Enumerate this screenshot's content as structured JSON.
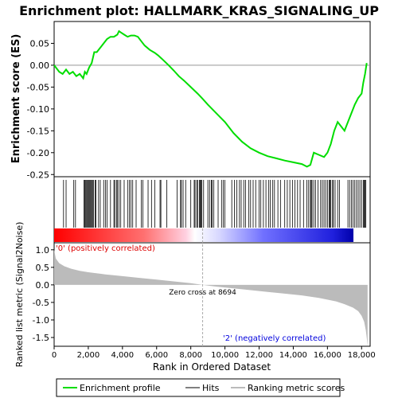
{
  "chart_data": {
    "type": "line",
    "title": "Enrichment plot: HALLMARK_KRAS_SIGNALING_UP",
    "xlabel": "Rank in Ordered Dataset",
    "x_ticks": [
      0,
      2000,
      4000,
      6000,
      8000,
      10000,
      12000,
      14000,
      16000,
      18000
    ],
    "x_tick_labels": [
      "0",
      "2,000",
      "4,000",
      "6,000",
      "8,000",
      "10,000",
      "12,000",
      "14,000",
      "16,000",
      "18,000"
    ],
    "xlim": [
      0,
      18500
    ],
    "colors": {
      "es_line": "#00dd00",
      "metric_fill": "#bbbbbb",
      "positive_text": "#dd0000",
      "negative_text": "#0000dd",
      "zero_line": "#aaaaaa"
    },
    "panels": {
      "enrichment": {
        "ylabel": "Enrichment score (ES)",
        "ylim": [
          -0.255,
          0.1
        ],
        "y_ticks": [
          -0.25,
          -0.2,
          -0.15,
          -0.1,
          -0.05,
          0.0,
          0.05
        ],
        "y_tick_labels": [
          "-0.25",
          "-0.20",
          "-0.15",
          "-0.10",
          "-0.05",
          "0.00",
          "0.05"
        ],
        "series": [
          {
            "name": "Enrichment profile",
            "x": [
              0,
              300,
              500,
              700,
              900,
              1100,
              1300,
              1500,
              1700,
              1800,
              1900,
              2050,
              2200,
              2350,
              2500,
              2700,
              2900,
              3100,
              3300,
              3500,
              3700,
              3800,
              3900,
              4100,
              4300,
              4500,
              4700,
              4900,
              5100,
              5300,
              5600,
              5900,
              6100,
              6300,
              6700,
              7000,
              7300,
              7600,
              8000,
              8400,
              8694,
              9000,
              9500,
              10000,
              10500,
              11000,
              11500,
              12000,
              12500,
              13000,
              13500,
              14000,
              14500,
              14800,
              15000,
              15200,
              15500,
              15800,
              16000,
              16200,
              16400,
              16600,
              16800,
              17000,
              17200,
              17400,
              17600,
              17800,
              18000,
              18100,
              18200,
              18300
            ],
            "y": [
              0.0,
              -0.015,
              -0.02,
              -0.01,
              -0.02,
              -0.015,
              -0.025,
              -0.02,
              -0.03,
              -0.015,
              -0.02,
              -0.005,
              0.005,
              0.03,
              0.03,
              0.04,
              0.05,
              0.06,
              0.065,
              0.065,
              0.07,
              0.078,
              0.075,
              0.07,
              0.065,
              0.068,
              0.068,
              0.065,
              0.055,
              0.045,
              0.035,
              0.028,
              0.022,
              0.015,
              0.0,
              -0.012,
              -0.025,
              -0.035,
              -0.05,
              -0.065,
              -0.077,
              -0.09,
              -0.11,
              -0.13,
              -0.155,
              -0.175,
              -0.19,
              -0.2,
              -0.208,
              -0.213,
              -0.218,
              -0.222,
              -0.226,
              -0.232,
              -0.228,
              -0.2,
              -0.205,
              -0.21,
              -0.2,
              -0.18,
              -0.15,
              -0.13,
              -0.14,
              -0.15,
              -0.13,
              -0.11,
              -0.09,
              -0.075,
              -0.065,
              -0.04,
              -0.02,
              0.005
            ]
          }
        ]
      },
      "hits": {
        "positions": [
          550,
          700,
          1150,
          1250,
          1750,
          1800,
          1850,
          1900,
          1950,
          2000,
          2050,
          2100,
          2150,
          2200,
          2250,
          2300,
          2400,
          2450,
          2600,
          2700,
          2900,
          3000,
          3100,
          3300,
          3500,
          3550,
          3650,
          3700,
          3800,
          3900,
          4100,
          4300,
          4400,
          4500,
          4600,
          4800,
          5100,
          5200,
          5500,
          5700,
          5900,
          6200,
          6250,
          6600,
          7200,
          7400,
          7450,
          7550,
          7700,
          8000,
          8200,
          8250,
          8350,
          8400,
          8500,
          8550,
          8600,
          8650,
          8750,
          9000,
          9100,
          9200,
          9250,
          9350,
          9600,
          9800,
          9900,
          10000,
          10400,
          10550,
          10700,
          10850,
          10950,
          11100,
          11200,
          11400,
          11500,
          11650,
          11800,
          12000,
          12100,
          12250,
          12400,
          12550,
          12650,
          12800,
          12900,
          13100,
          13250,
          13500,
          13650,
          13800,
          13950,
          14100,
          14250,
          14400,
          14600,
          14800,
          14900,
          15000,
          15050,
          15100,
          15200,
          15300,
          15450,
          15600,
          15700,
          15800,
          15900,
          16000,
          16100,
          16150,
          16200,
          16300,
          16350,
          16450,
          16600,
          16700,
          17200,
          17300,
          17400,
          17500,
          17600,
          17700,
          17800,
          17900,
          18000,
          18100,
          18150,
          18200,
          18250
        ]
      },
      "ranked_metric": {
        "ylabel": "Ranked list metric (Signal2Noise)",
        "ylim": [
          -1.75,
          1.2
        ],
        "y_ticks": [
          -1.5,
          -1.0,
          -0.5,
          0.0,
          0.5,
          1.0
        ],
        "y_tick_labels": [
          "-1.5",
          "-1.0",
          "-0.5",
          "0.0",
          "0.5",
          "1.0"
        ],
        "x": [
          0,
          100,
          300,
          600,
          1000,
          1500,
          2000,
          3000,
          4000,
          5000,
          6000,
          7000,
          8000,
          8694,
          9500,
          10500,
          11500,
          12500,
          13500,
          14500,
          15500,
          16500,
          17000,
          17500,
          17800,
          18000,
          18150,
          18250,
          18300,
          18350
        ],
        "values": [
          1.0,
          0.75,
          0.62,
          0.53,
          0.46,
          0.4,
          0.36,
          0.3,
          0.25,
          0.2,
          0.15,
          0.1,
          0.05,
          0.0,
          -0.05,
          -0.1,
          -0.15,
          -0.2,
          -0.25,
          -0.3,
          -0.37,
          -0.47,
          -0.55,
          -0.65,
          -0.75,
          -0.88,
          -1.05,
          -1.3,
          -1.5,
          -1.75
        ],
        "zero_cross_label": "Zero cross at 8694",
        "zero_cross": 8694,
        "positive_label": "'0' (positively correlated)",
        "negative_label": "'2' (negatively correlated)"
      }
    },
    "legend": {
      "placement": "bottom",
      "items": [
        {
          "label": "Enrichment profile",
          "color": "#00dd00"
        },
        {
          "label": "Hits",
          "color": "#000000"
        },
        {
          "label": "Ranking metric scores",
          "color": "#bbbbbb"
        }
      ]
    }
  }
}
